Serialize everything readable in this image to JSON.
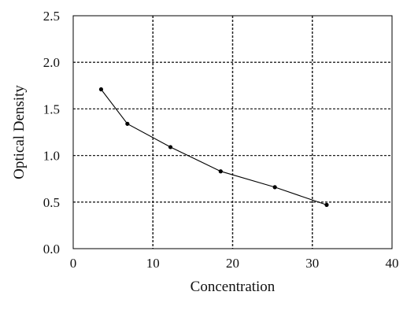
{
  "chart_data": {
    "type": "line",
    "title": "",
    "xlabel": "Concentration",
    "ylabel": "Optical Density",
    "xlim": [
      0,
      40
    ],
    "ylim": [
      0,
      2.5
    ],
    "x_ticks": [
      "0",
      "10",
      "20",
      "30",
      "40"
    ],
    "y_ticks": [
      "0.0",
      "0.5",
      "1.0",
      "1.5",
      "2.0",
      "2.5"
    ],
    "grid": true,
    "legend": "none",
    "series": [
      {
        "x": [
          3.5,
          6.8,
          12.2,
          18.5,
          25.3,
          31.8
        ],
        "y": [
          1.71,
          1.34,
          1.09,
          0.83,
          0.66,
          0.47
        ]
      }
    ],
    "colors": {
      "line": "#000000",
      "grid": "#222222",
      "axis": "#000000"
    }
  }
}
